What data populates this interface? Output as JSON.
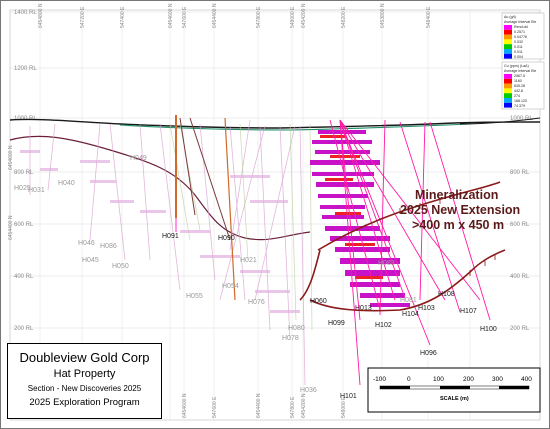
{
  "rl_levels": [
    "1400 RL",
    "1200 RL",
    "1000 RL",
    "800 RL",
    "600 RL",
    "400 RL",
    "200 RL"
  ],
  "rl_levels_right": [
    "1000 RL",
    "800 RL",
    "600 RL",
    "400 RL",
    "200 RL"
  ],
  "grid_top": [
    "6454800 N",
    "547200 E",
    "547400 E",
    "6454600 N",
    "547600 E",
    "6454400 N",
    "547800 E",
    "548000 E",
    "6454200 N",
    "548200 E",
    "6453800 N",
    "548400 E"
  ],
  "grid_bottom": [
    "6454600 N",
    "547600 E",
    "6454400 N",
    "547800 E",
    "6454200 N",
    "548000 E"
  ],
  "grid_left_side": [
    "6454600 N",
    "6454400 N"
  ],
  "holes": {
    "H091": "H091",
    "H090": "H090",
    "H045": "H045",
    "H046": "H046",
    "H086": "H086",
    "H050": "H050",
    "H055": "H055",
    "H054": "H054",
    "H076": "H076",
    "H078": "H078",
    "H036": "H036",
    "H099": "H099",
    "H101": "H101",
    "H102": "H102",
    "H103": "H103",
    "H104": "H104",
    "H108": "H108",
    "H107": "H107",
    "H100": "H100",
    "H096": "H096",
    "H025": "H025",
    "H031": "H031",
    "H083": "H083",
    "H060": "H060",
    "H080": "H080",
    "H013": "H013",
    "H040": "H040",
    "H049": "H049",
    "H081": "H081",
    "H021": "H021"
  },
  "mineralization": {
    "line1": "Mineralization",
    "line2": "2025 New Extension",
    "line3": ">400 m x  450 m"
  },
  "legend_au": {
    "title1": "Au (g/t)",
    "title2": "Average Interval Ele",
    "values": [
      "Rend.dd",
      "0.2571",
      "0.04776",
      "0.032",
      "0.011",
      "0.011",
      "0.004"
    ],
    "colors": [
      "#ff00ff",
      "#ff0000",
      "#ff9900",
      "#ffff00",
      "#00cc00",
      "#00aaff",
      "#0000ff"
    ]
  },
  "legend_cu": {
    "title1": "Cu (ppm) (LaA)",
    "title2": "Average Interval Ele",
    "values": [
      "2567.5",
      "1160",
      "635.28",
      "442.8",
      "274",
      "168.120",
      "74.379"
    ],
    "colors": [
      "#ff00ff",
      "#ff0000",
      "#ff9900",
      "#ffff00",
      "#00cc00",
      "#00aaff",
      "#0000ff"
    ]
  },
  "title_block": {
    "company": "Doubleview Gold Corp",
    "property": "Hat Property",
    "section": "Section - New Discoveries 2025",
    "program": "2025 Exploration Program"
  },
  "scale_bar": {
    "ticks": [
      "-100",
      "0",
      "100",
      "200",
      "300",
      "400"
    ],
    "label": "SCALE (m)"
  }
}
